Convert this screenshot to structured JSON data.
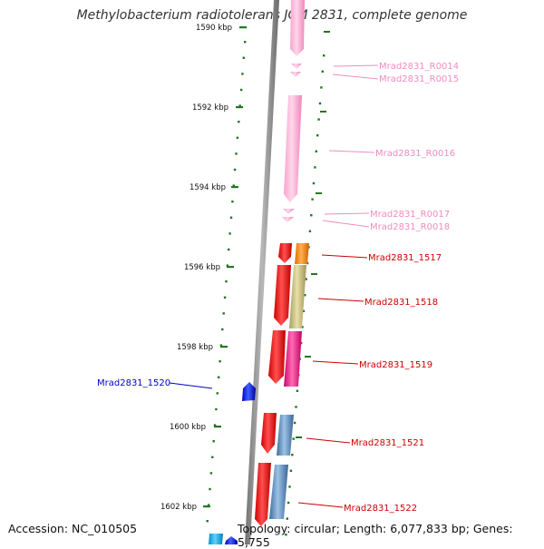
{
  "title": "Methylobacterium radiotolerans JCM 2831, complete genome",
  "footer": {
    "accession": "Accession: NC_010505",
    "info": "Topology: circular; Length: 6,077,833 bp; Genes: 5,755"
  },
  "colors": {
    "rna": "#f08cc0",
    "forward_gene": "#cc0000",
    "reverse_gene": "#0000cc",
    "axis": "#8a8a8a",
    "tick": "#227722"
  },
  "kbp_ticks": [
    {
      "label": "1590 kbp"
    },
    {
      "label": "1592 kbp"
    },
    {
      "label": "1594 kbp"
    },
    {
      "label": "1596 kbp"
    },
    {
      "label": "1598 kbp"
    },
    {
      "label": "1600 kbp"
    },
    {
      "label": "1602 kbp"
    }
  ],
  "genes": [
    {
      "name": "Mrad2831_R0014"
    },
    {
      "name": "Mrad2831_R0015"
    },
    {
      "name": "Mrad2831_R0016"
    },
    {
      "name": "Mrad2831_R0017"
    },
    {
      "name": "Mrad2831_R0018"
    },
    {
      "name": "Mrad2831_1517"
    },
    {
      "name": "Mrad2831_1518"
    },
    {
      "name": "Mrad2831_1519"
    },
    {
      "name": "Mrad2831_1520"
    },
    {
      "name": "Mrad2831_1521"
    },
    {
      "name": "Mrad2831_1522"
    }
  ]
}
